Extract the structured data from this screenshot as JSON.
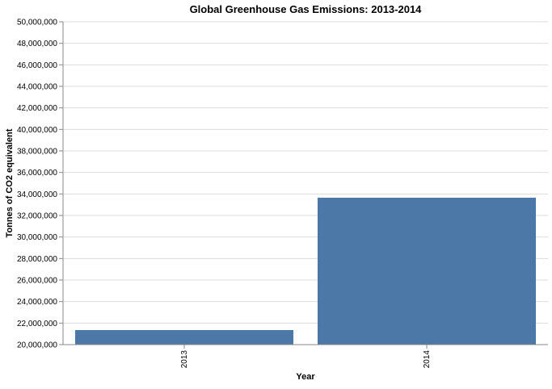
{
  "chart_data": {
    "type": "bar",
    "title": "Global Greenhouse Gas Emissions: 2013-2014",
    "xlabel": "Year",
    "ylabel": "Tonnes of CO2 equivalent",
    "categories": [
      "2013",
      "2014"
    ],
    "values": [
      21350000,
      33650000
    ],
    "ylim": [
      20000000,
      50000000
    ],
    "ytick_step": 2000000,
    "grid": true,
    "bar_color": "#4c78a8"
  }
}
